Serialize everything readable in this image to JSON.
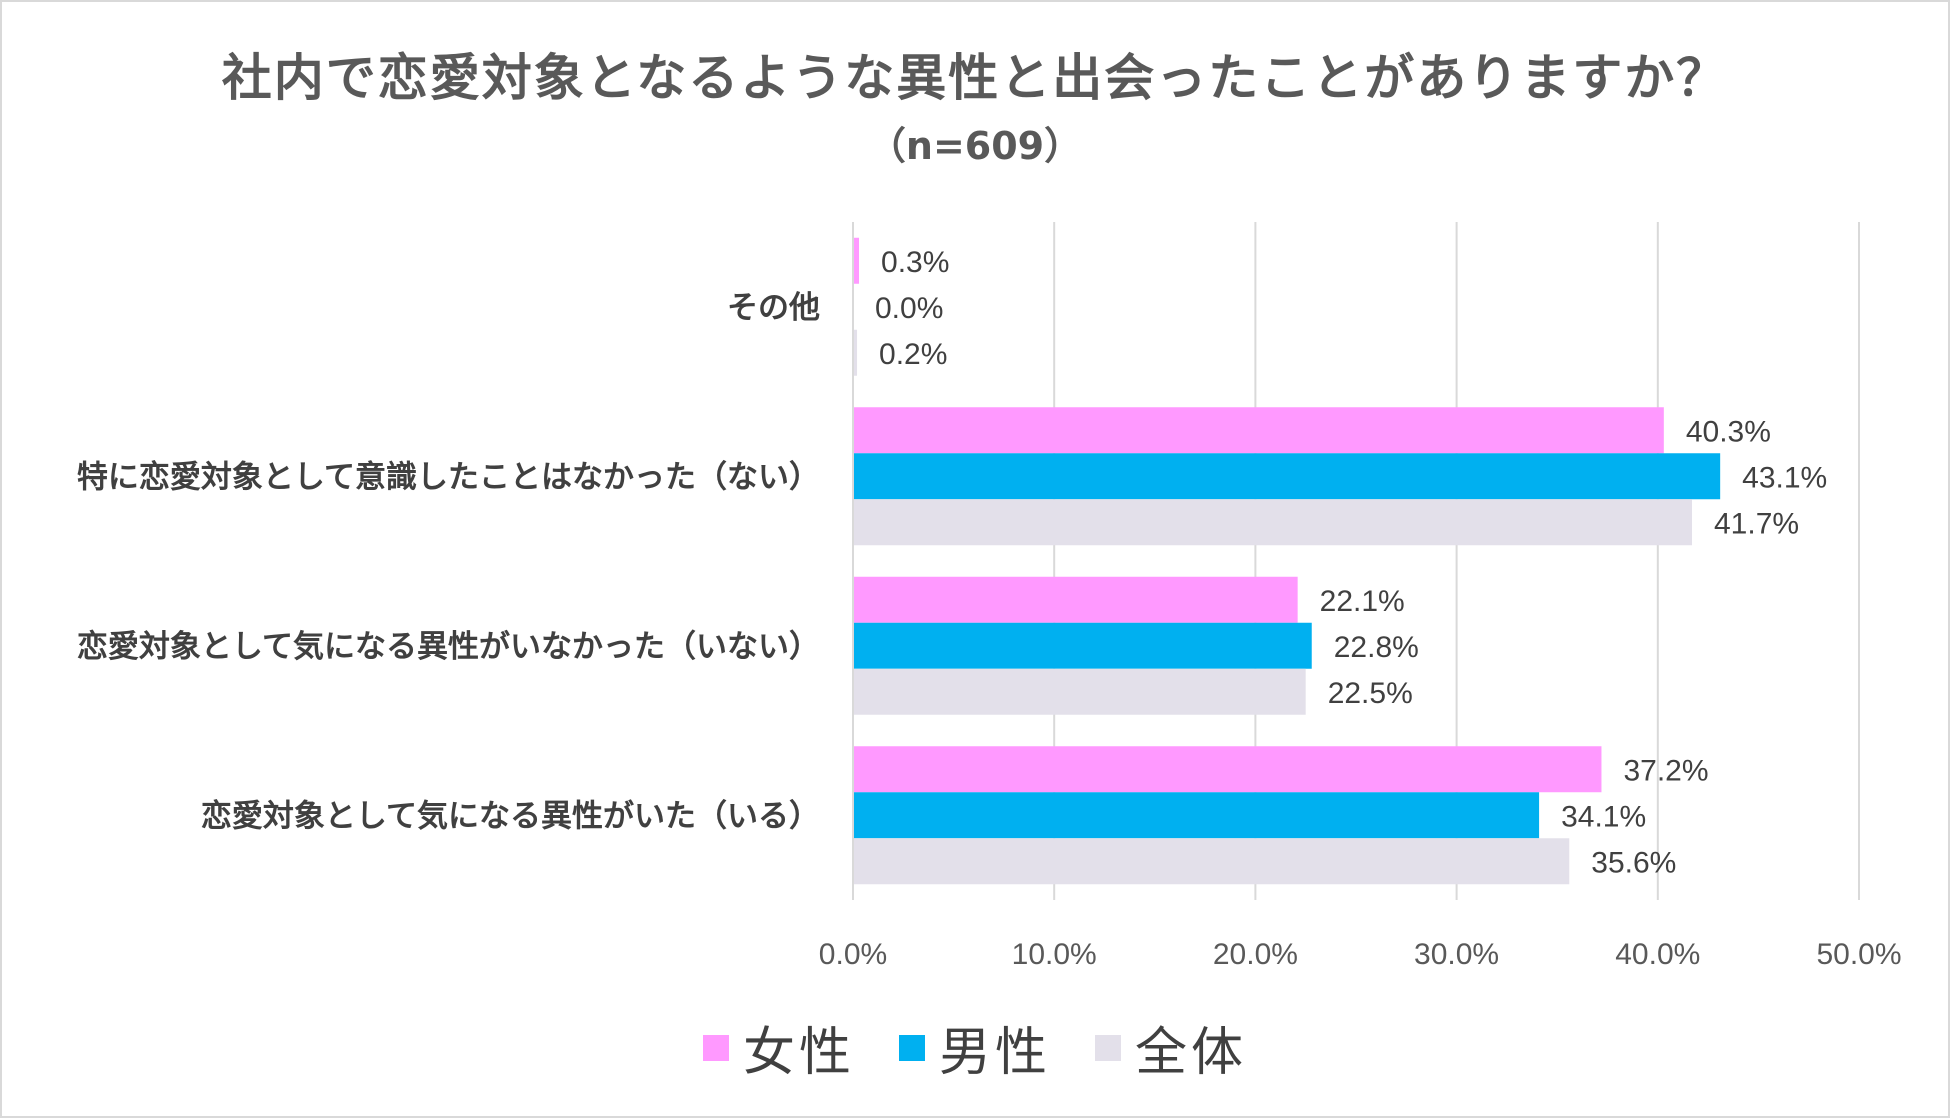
{
  "chart_data": {
    "type": "bar",
    "orientation": "horizontal",
    "title": "社内で恋愛対象となるような異性と出会ったことがありますか？",
    "subtitle": "（n=609）",
    "categories": [
      "その他",
      "特に恋愛対象として意識したことはなかった（ない）",
      "恋愛対象として気になる異性がいなかった（いない）",
      "恋愛対象として気になる異性がいた（いる）"
    ],
    "series": [
      {
        "name": "女性",
        "color": "#ff99ff",
        "values": [
          0.3,
          40.3,
          22.1,
          37.2
        ],
        "labels": [
          "0.3%",
          "40.3%",
          "22.1%",
          "37.2%"
        ]
      },
      {
        "name": "男性",
        "color": "#00b0f0",
        "values": [
          0.0,
          43.1,
          22.8,
          34.1
        ],
        "labels": [
          "0.0%",
          "43.1%",
          "22.8%",
          "34.1%"
        ]
      },
      {
        "name": "全体",
        "color": "#e3e0ea",
        "values": [
          0.2,
          41.7,
          22.5,
          35.6
        ],
        "labels": [
          "0.2%",
          "41.7%",
          "22.5%",
          "35.6%"
        ]
      }
    ],
    "xlim": [
      0,
      50
    ],
    "xticks": [
      "0.0%",
      "10.0%",
      "20.0%",
      "30.0%",
      "40.0%",
      "50.0%"
    ],
    "grid": true,
    "legend_position": "bottom"
  }
}
